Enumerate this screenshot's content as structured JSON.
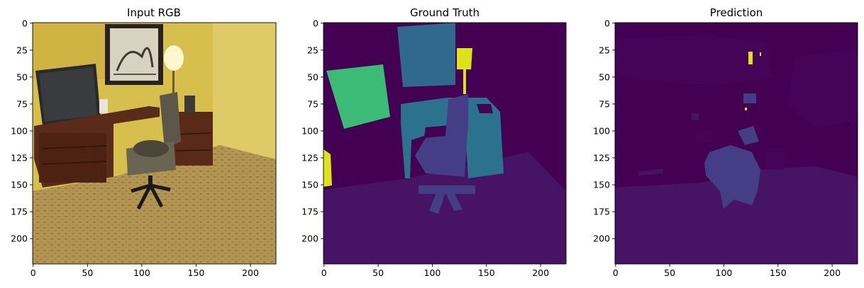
{
  "figure": {
    "panels": [
      {
        "title": "Input RGB"
      },
      {
        "title": "Ground Truth"
      },
      {
        "title": "Prediction"
      }
    ]
  },
  "chart_data": [
    {
      "type": "image",
      "title": "Input RGB",
      "content": "photo",
      "xlim": [
        0,
        224
      ],
      "ylim": [
        224,
        0
      ],
      "xticks": [
        0,
        50,
        100,
        150,
        200
      ],
      "yticks": [
        0,
        25,
        50,
        75,
        100,
        125,
        150,
        175,
        200
      ],
      "grid": false,
      "colors": {
        "wall": "#d9c24a",
        "carpet": "#b79a55",
        "desk": "#5a2a18",
        "monitor": "#2b2b2e",
        "chair": "#6b6550",
        "lamp": "#fff6c9"
      }
    },
    {
      "type": "heatmap",
      "title": "Ground Truth",
      "colormap": "viridis",
      "xlim": [
        0,
        224
      ],
      "ylim": [
        224,
        0
      ],
      "xticks": [
        0,
        50,
        100,
        150,
        200
      ],
      "yticks": [
        0,
        25,
        50,
        75,
        100,
        125,
        150,
        175,
        200
      ],
      "grid": false,
      "colors": {
        "background": "#440154",
        "floor": "#471365",
        "picture": "#31688e",
        "monitor": "#3bbb75",
        "desk": "#2c728e",
        "chair": "#433e85",
        "lamp": "#dde318",
        "small": "#5ec962"
      }
    },
    {
      "type": "heatmap",
      "title": "Prediction",
      "colormap": "viridis",
      "xlim": [
        0,
        224
      ],
      "ylim": [
        224,
        0
      ],
      "xticks": [
        0,
        50,
        100,
        150,
        200
      ],
      "yticks": [
        0,
        25,
        50,
        75,
        100,
        125,
        150,
        175,
        200
      ],
      "grid": false,
      "colors": {
        "background": "#440154",
        "wall": "#450457",
        "floor": "#471365",
        "chair": "#433e85",
        "lamp": "#dde318"
      }
    }
  ]
}
